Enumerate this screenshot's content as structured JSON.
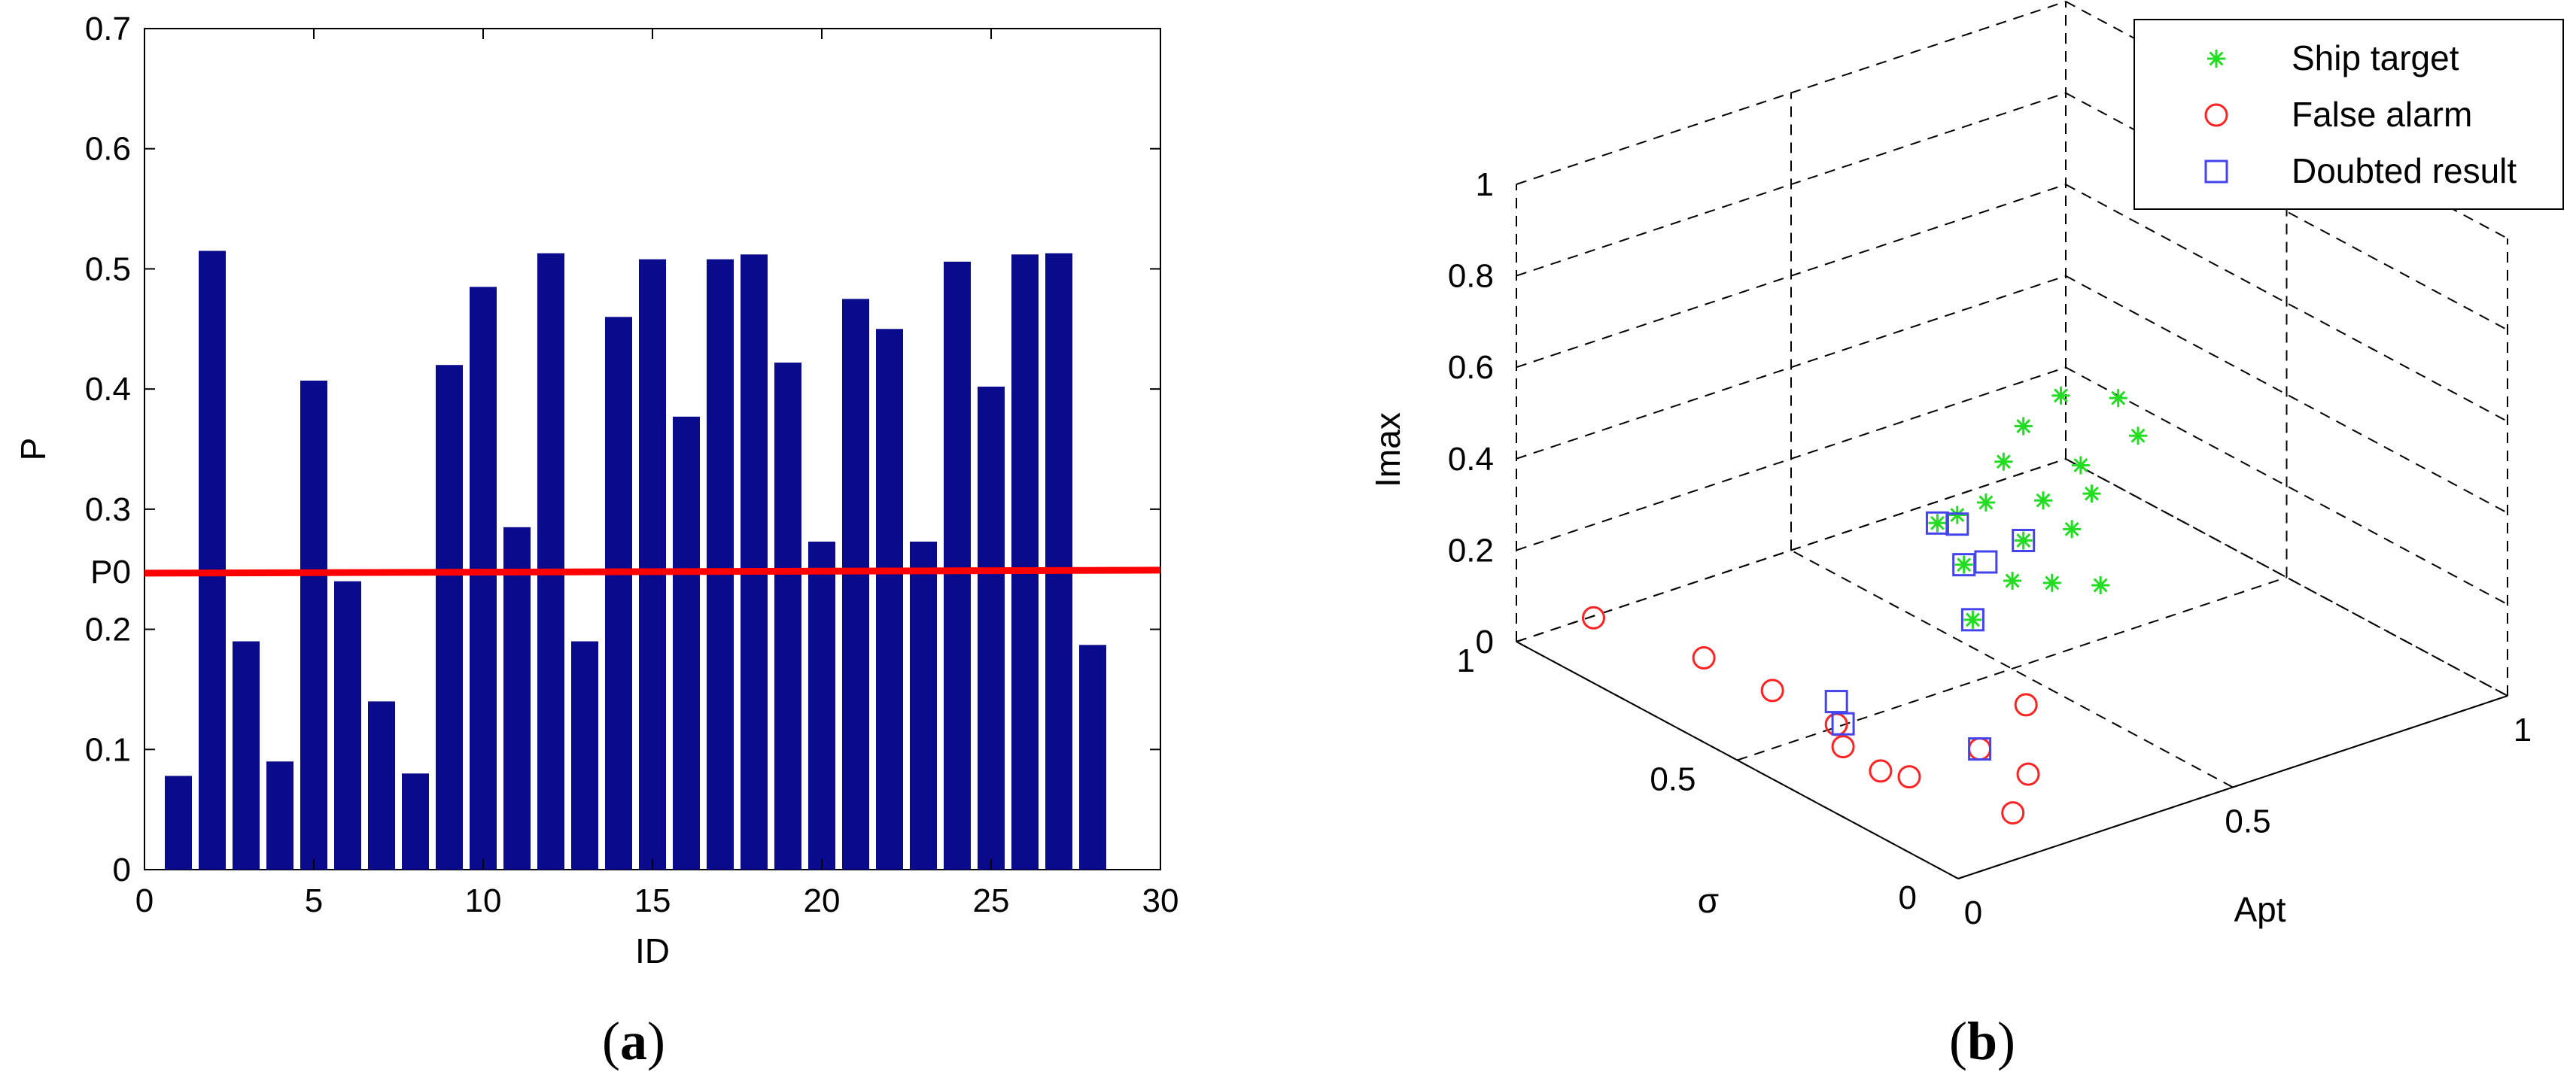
{
  "panels": [
    {
      "caption_open": "(",
      "caption_letter": "a",
      "caption_close": ")"
    },
    {
      "caption_open": "(",
      "caption_letter": "b",
      "caption_close": ")"
    }
  ],
  "chart_data": [
    {
      "type": "bar",
      "title": "",
      "xlabel": "ID",
      "ylabel": "P",
      "xlim": [
        0,
        30
      ],
      "ylim": [
        0,
        0.7
      ],
      "xticks": [
        "0",
        "5",
        "10",
        "15",
        "20",
        "25",
        "30"
      ],
      "yticks": [
        "0",
        "0.1",
        "0.2",
        "0.3",
        "0.4",
        "0.5",
        "0.6",
        "0.7"
      ],
      "bar_color": "#0a0a8c",
      "categories": [
        1,
        2,
        3,
        4,
        5,
        6,
        7,
        8,
        9,
        10,
        11,
        12,
        13,
        14,
        15,
        16,
        17,
        18,
        19,
        20,
        21,
        22,
        23,
        24,
        25,
        26,
        27,
        28
      ],
      "values": [
        0.078,
        0.515,
        0.19,
        0.09,
        0.407,
        0.24,
        0.14,
        0.08,
        0.42,
        0.485,
        0.285,
        0.513,
        0.19,
        0.46,
        0.508,
        0.377,
        0.508,
        0.512,
        0.422,
        0.273,
        0.475,
        0.45,
        0.273,
        0.506,
        0.402,
        0.512,
        0.513,
        0.187
      ],
      "threshold": {
        "label": "P0",
        "value": 0.248,
        "color": "#ff0000"
      },
      "grid": false
    },
    {
      "type": "scatter",
      "projection": "3d",
      "title": "",
      "xlabel": "Apt",
      "ylabel": "σ",
      "zlabel": "Imax",
      "xlim": [
        0,
        1
      ],
      "ylim": [
        0,
        1
      ],
      "zlim": [
        0,
        1
      ],
      "xticks": [
        "0",
        "0.5",
        "1"
      ],
      "yticks": [
        "0",
        "0.5",
        "1"
      ],
      "zticks": [
        "0",
        "0.2",
        "0.4",
        "0.6",
        "0.8",
        "1"
      ],
      "grid": true,
      "legend_position": "top-right",
      "series": [
        {
          "name": "Ship target",
          "marker": "asterisk",
          "color": "#22dd22",
          "points": [
            [
              0.42,
              0.16,
              0.8
            ],
            [
              0.38,
              0.24,
              0.78
            ],
            [
              0.36,
              0.3,
              0.69
            ],
            [
              0.4,
              0.22,
              0.63
            ],
            [
              0.44,
              0.14,
              0.72
            ],
            [
              0.34,
              0.32,
              0.61
            ],
            [
              0.42,
              0.22,
              0.56
            ],
            [
              0.38,
              0.28,
              0.53
            ],
            [
              0.34,
              0.36,
              0.5
            ],
            [
              0.4,
              0.24,
              0.48
            ],
            [
              0.32,
              0.4,
              0.46
            ],
            [
              0.3,
              0.42,
              0.44
            ],
            [
              0.36,
              0.3,
              0.44
            ],
            [
              0.42,
              0.2,
              0.37
            ],
            [
              0.3,
              0.36,
              0.38
            ],
            [
              0.38,
              0.26,
              0.36
            ],
            [
              0.34,
              0.3,
              0.36
            ],
            [
              0.3,
              0.34,
              0.27
            ]
          ]
        },
        {
          "name": "False alarm",
          "marker": "circle",
          "color": "#ff2222",
          "points": [
            [
              0.22,
              0.12,
              0.23
            ],
            [
              0.08,
              0.52,
              0.11
            ],
            [
              0.1,
              0.3,
              0.04
            ],
            [
              0.12,
              0.26,
              0.04
            ],
            [
              0.18,
              0.1,
              0.02
            ],
            [
              0.1,
              0.7,
              0.08
            ],
            [
              0.06,
              0.9,
              0.08
            ],
            [
              0.1,
              0.4,
              0.09
            ],
            [
              0.08,
              0.36,
              0.07
            ],
            [
              0.2,
              0.2,
              0.1
            ],
            [
              0.24,
              0.14,
              0.06
            ]
          ]
        },
        {
          "name": "Doubted result",
          "marker": "square",
          "color": "#4444ee",
          "points": [
            [
              0.32,
              0.4,
              0.44
            ],
            [
              0.3,
              0.42,
              0.44
            ],
            [
              0.36,
              0.3,
              0.44
            ],
            [
              0.34,
              0.36,
              0.37
            ],
            [
              0.3,
              0.36,
              0.38
            ],
            [
              0.3,
              0.34,
              0.27
            ],
            [
              0.1,
              0.4,
              0.14
            ],
            [
              0.08,
              0.36,
              0.12
            ],
            [
              0.2,
              0.2,
              0.1
            ]
          ]
        }
      ]
    }
  ]
}
